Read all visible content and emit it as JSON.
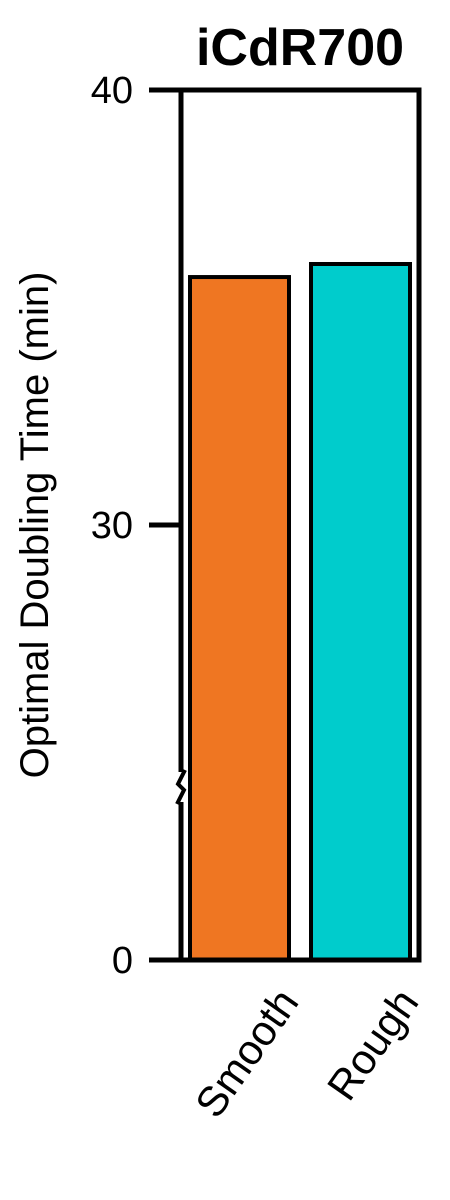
{
  "chart_data": {
    "type": "bar",
    "title": "iCdR700",
    "xlabel": "",
    "ylabel": "Optimal Doubling Time (min)",
    "categories": [
      "Smooth",
      "Rough"
    ],
    "values": [
      35.7,
      36.0
    ],
    "colors": [
      "#EF7622",
      "#00CCCC"
    ],
    "yticks": [
      0,
      30,
      40
    ],
    "ylim": [
      0,
      40
    ],
    "axis_break": true,
    "grid": false,
    "legend": "none"
  }
}
